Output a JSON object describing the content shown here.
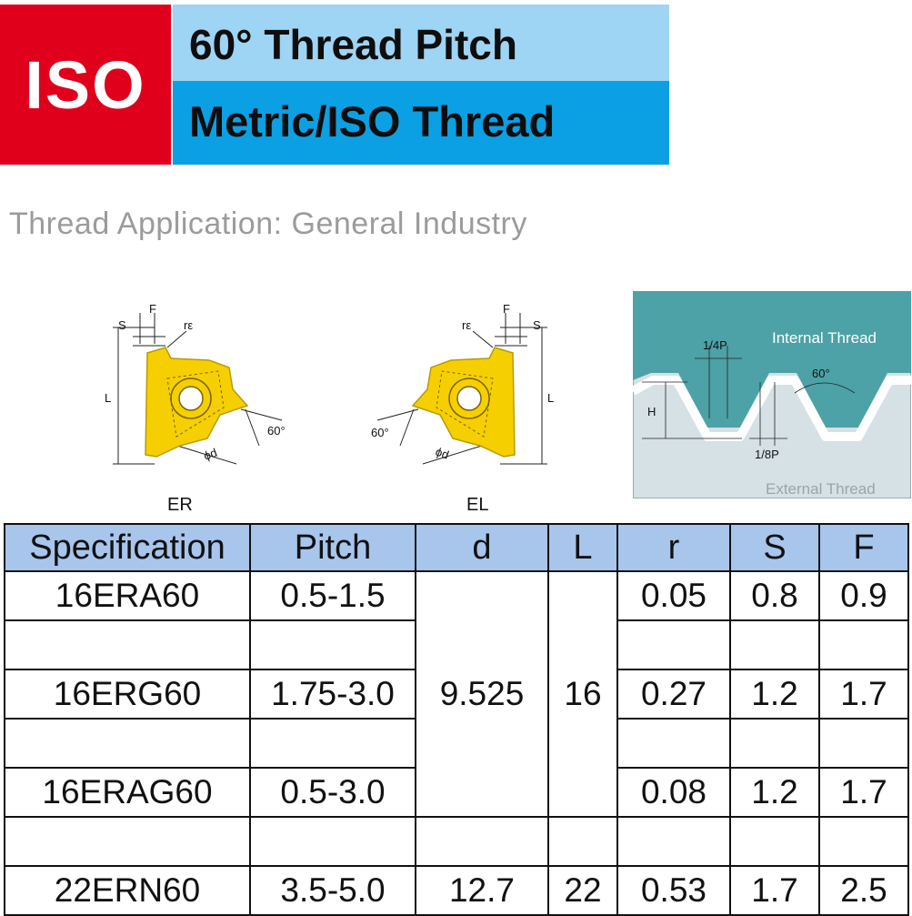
{
  "header": {
    "badge": "ISO",
    "title_line1": "60° Thread Pitch",
    "title_line2": "Metric/ISO Thread",
    "colors": {
      "badge_bg": "#e1001b",
      "band1": "#9ed4f4",
      "band2": "#0aa0e3"
    }
  },
  "application": "Thread Application: General Industry",
  "diagrams": {
    "er": {
      "label": "ER",
      "dims": {
        "f": "F",
        "s": "S",
        "r": "rε",
        "l": "L",
        "d": "ϕd",
        "angle": "60°"
      }
    },
    "el": {
      "label": "EL",
      "dims": {
        "f": "F",
        "s": "S",
        "r": "rε",
        "l": "L",
        "d": "ϕd",
        "angle": "60°"
      }
    },
    "thread": {
      "internal": "Internal Thread",
      "external": "External Thread",
      "quarter_p": "1/4P",
      "eighth_p": "1/8P",
      "h": "H",
      "angle": "60°"
    }
  },
  "table": {
    "headers": [
      "Specification",
      "Pitch",
      "d",
      "L",
      "r",
      "S",
      "F"
    ],
    "rows": [
      {
        "spec": "16ERA60",
        "pitch": "0.5-1.5",
        "r": "0.05",
        "s": "0.8",
        "f": "0.9"
      },
      {
        "spec": "16ERG60",
        "pitch": "1.75-3.0",
        "r": "0.27",
        "s": "1.2",
        "f": "1.7"
      },
      {
        "spec": "16ERAG60",
        "pitch": "0.5-3.0",
        "r": "0.08",
        "s": "1.2",
        "f": "1.7"
      },
      {
        "spec": "22ERN60",
        "pitch": "3.5-5.0",
        "d": "12.7",
        "l": "22",
        "r": "0.53",
        "s": "1.7",
        "f": "2.5"
      }
    ],
    "merged_d": "9.525",
    "merged_l": "16"
  }
}
